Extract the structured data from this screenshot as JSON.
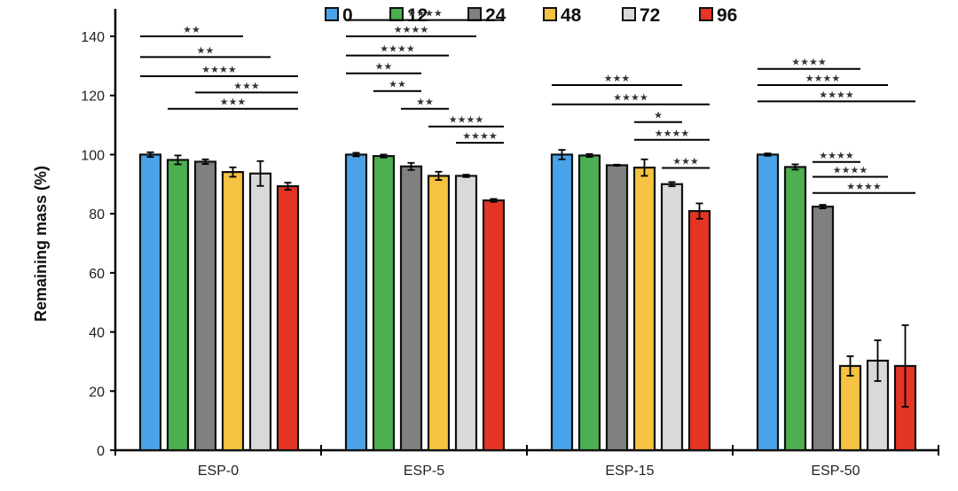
{
  "chart_data": {
    "type": "bar",
    "title": "",
    "xlabel": "",
    "ylabel": "Remaining mass (%)",
    "ylim": [
      0,
      140
    ],
    "yticks": [
      0,
      20,
      40,
      60,
      80,
      100,
      120,
      140
    ],
    "grid": false,
    "legend_position": "top-center",
    "categories": [
      "ESP-0",
      "ESP-5",
      "ESP-15",
      "ESP-50"
    ],
    "series": [
      {
        "name": "0",
        "color": "#4aa3e8",
        "values": [
          100.0,
          100.0,
          100.0,
          100.0
        ],
        "errors": [
          0.8,
          0.6,
          1.6,
          0.4
        ]
      },
      {
        "name": "12",
        "color": "#4caf50",
        "values": [
          98.2,
          99.5,
          99.7,
          95.8
        ],
        "errors": [
          1.5,
          0.5,
          0.5,
          0.9
        ]
      },
      {
        "name": "24",
        "color": "#808080",
        "values": [
          97.6,
          96.0,
          96.4,
          82.4
        ],
        "errors": [
          0.8,
          1.2,
          0.2,
          0.6
        ]
      },
      {
        "name": "48",
        "color": "#f5c242",
        "values": [
          94.1,
          92.8,
          95.6,
          28.5
        ],
        "errors": [
          1.6,
          1.4,
          2.8,
          3.3
        ]
      },
      {
        "name": "72",
        "color": "#d9d9d9",
        "values": [
          93.6,
          92.8,
          90.0,
          30.3
        ],
        "errors": [
          4.2,
          0.4,
          0.7,
          6.9
        ]
      },
      {
        "name": "96",
        "color": "#e53525",
        "values": [
          89.3,
          84.5,
          80.9,
          28.5
        ],
        "errors": [
          1.2,
          0.5,
          2.6,
          13.8
        ]
      }
    ],
    "significance": [
      {
        "group": 0,
        "from": 0,
        "to": 3,
        "level": 140,
        "label": "**"
      },
      {
        "group": 0,
        "from": 0,
        "to": 4,
        "level": 133,
        "label": "**"
      },
      {
        "group": 0,
        "from": 0,
        "to": 5,
        "level": 126.5,
        "label": "****"
      },
      {
        "group": 0,
        "from": 2,
        "to": 5,
        "level": 121,
        "label": "***"
      },
      {
        "group": 0,
        "from": 1,
        "to": 5,
        "level": 115.5,
        "label": "***"
      },
      {
        "group": 1,
        "from": 0,
        "to": 5,
        "level": 145.5,
        "label": "****"
      },
      {
        "group": 1,
        "from": 0,
        "to": 4,
        "level": 140,
        "label": "****"
      },
      {
        "group": 1,
        "from": 0,
        "to": 3,
        "level": 133.5,
        "label": "****"
      },
      {
        "group": 1,
        "from": 0,
        "to": 2,
        "level": 127.5,
        "label": "**"
      },
      {
        "group": 1,
        "from": 1,
        "to": 2,
        "level": 121.5,
        "label": "**"
      },
      {
        "group": 1,
        "from": 2,
        "to": 3,
        "level": 115.5,
        "label": "**"
      },
      {
        "group": 1,
        "from": 3,
        "to": 5,
        "level": 109.5,
        "label": "****"
      },
      {
        "group": 1,
        "from": 4,
        "to": 5,
        "level": 104,
        "label": "****"
      },
      {
        "group": 2,
        "from": 0,
        "to": 4,
        "level": 123.5,
        "label": "***"
      },
      {
        "group": 2,
        "from": 0,
        "to": 5,
        "level": 117,
        "label": "****"
      },
      {
        "group": 2,
        "from": 3,
        "to": 4,
        "level": 111,
        "label": "*"
      },
      {
        "group": 2,
        "from": 3,
        "to": 5,
        "level": 105,
        "label": "****"
      },
      {
        "group": 2,
        "from": 4,
        "to": 5,
        "level": 95.5,
        "label": "***"
      }
    ],
    "significance_group3": [
      {
        "group": 3,
        "from": 0,
        "to": 3,
        "level": 129,
        "label": "****"
      },
      {
        "group": 3,
        "from": 0,
        "to": 4,
        "level": 123.5,
        "label": "****"
      },
      {
        "group": 3,
        "from": 0,
        "to": 5,
        "level": 118,
        "label": "****"
      },
      {
        "group": 3,
        "from": 2,
        "to": 3,
        "level": 97.5,
        "label": "****"
      },
      {
        "group": 3,
        "from": 2,
        "to": 4,
        "level": 92.5,
        "label": "****"
      },
      {
        "group": 3,
        "from": 2,
        "to": 5,
        "level": 87,
        "label": "****"
      }
    ]
  }
}
